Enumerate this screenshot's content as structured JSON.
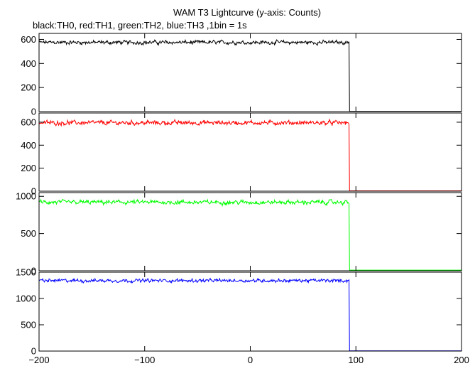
{
  "chart_data": {
    "type": "line",
    "title": "WAM T3 Lightcurve (y-axis: Counts)",
    "subtitle": "black:TH0, red:TH1, green:TH2, blue:TH3 ,1bin = 1s",
    "xlim": [
      -200,
      200
    ],
    "xticks": [
      -200,
      -100,
      0,
      100,
      200
    ],
    "xtick_labels": [
      "−200",
      "−100",
      "0",
      "100",
      "200"
    ],
    "step_x": 94,
    "noise_seed": 12345,
    "panels": [
      {
        "color": "#000000",
        "ylim": [
          0,
          650
        ],
        "yticks": [
          0,
          200,
          400,
          600
        ],
        "ytick_labels": [
          "0",
          "200",
          "400",
          "600"
        ],
        "level": 575,
        "noise": 10,
        "after": 2
      },
      {
        "color": "#ff0000",
        "ylim": [
          0,
          680
        ],
        "yticks": [
          0,
          200,
          400,
          600
        ],
        "ytick_labels": [
          "0",
          "200",
          "400",
          "600"
        ],
        "level": 595,
        "noise": 12,
        "after": 3
      },
      {
        "color": "#00ff00",
        "ylim": [
          0,
          1050
        ],
        "yticks": [
          0,
          500,
          1000
        ],
        "ytick_labels": [
          "0",
          "500",
          "1000"
        ],
        "level": 920,
        "noise": 18,
        "after": 8
      },
      {
        "color": "#0000ff",
        "ylim": [
          0,
          1500
        ],
        "yticks": [
          0,
          500,
          1000,
          1500
        ],
        "ytick_labels": [
          "0",
          "500",
          "1000",
          "1500"
        ],
        "level": 1340,
        "noise": 20,
        "after": 5
      }
    ]
  }
}
